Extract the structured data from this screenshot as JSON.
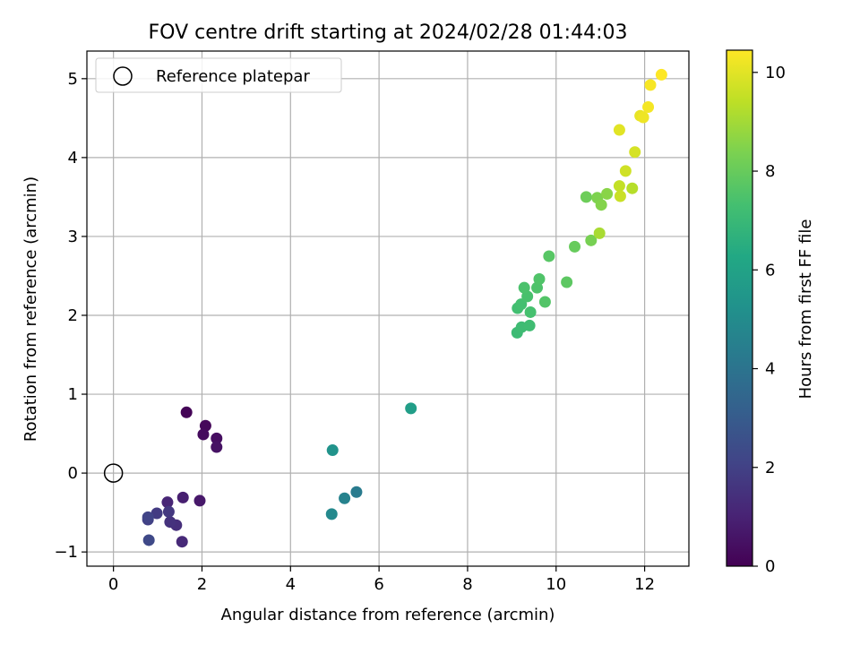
{
  "chart_data": {
    "type": "scatter",
    "title": "FOV centre drift starting at 2024/02/28 01:44:03",
    "xlabel": "Angular distance from reference (arcmin)",
    "ylabel": "Rotation from reference (arcmin)",
    "xlim": [
      -0.6,
      13.0
    ],
    "ylim": [
      -1.18,
      5.35
    ],
    "xticks": [
      0,
      2,
      4,
      6,
      8,
      10,
      12
    ],
    "yticks": [
      -1,
      0,
      1,
      2,
      3,
      4,
      5
    ],
    "grid": true,
    "legend": {
      "placement": "top-left",
      "entries": [
        "Reference platepar"
      ]
    },
    "reference_point": {
      "name": "Reference platepar",
      "x": 0,
      "y": 0,
      "marker": "open-circle"
    },
    "colorbar": {
      "label": "Hours from first FF file",
      "colormap": "viridis",
      "range": [
        0,
        10.45
      ],
      "ticks": [
        0,
        2,
        4,
        6,
        8,
        10
      ]
    },
    "points": [
      {
        "x": 1.65,
        "y": 0.77,
        "c": 0.1
      },
      {
        "x": 2.08,
        "y": 0.6,
        "c": 0.2
      },
      {
        "x": 2.03,
        "y": 0.49,
        "c": 0.3
      },
      {
        "x": 2.33,
        "y": 0.44,
        "c": 0.4
      },
      {
        "x": 2.33,
        "y": 0.33,
        "c": 0.5
      },
      {
        "x": 1.95,
        "y": -0.35,
        "c": 0.7
      },
      {
        "x": 1.57,
        "y": -0.31,
        "c": 0.9
      },
      {
        "x": 1.22,
        "y": -0.37,
        "c": 1.1
      },
      {
        "x": 1.55,
        "y": -0.87,
        "c": 1.2
      },
      {
        "x": 1.42,
        "y": -0.66,
        "c": 1.4
      },
      {
        "x": 1.28,
        "y": -0.62,
        "c": 1.5
      },
      {
        "x": 1.25,
        "y": -0.49,
        "c": 1.7
      },
      {
        "x": 0.98,
        "y": -0.51,
        "c": 1.8
      },
      {
        "x": 0.78,
        "y": -0.59,
        "c": 2.0
      },
      {
        "x": 0.78,
        "y": -0.56,
        "c": 2.1
      },
      {
        "x": 0.8,
        "y": -0.85,
        "c": 2.3
      },
      {
        "x": 5.49,
        "y": -0.24,
        "c": 4.3
      },
      {
        "x": 5.22,
        "y": -0.32,
        "c": 4.6
      },
      {
        "x": 4.93,
        "y": -0.52,
        "c": 4.9
      },
      {
        "x": 4.95,
        "y": 0.29,
        "c": 5.3
      },
      {
        "x": 6.72,
        "y": 0.82,
        "c": 5.8
      },
      {
        "x": 9.12,
        "y": 1.78,
        "c": 7.1
      },
      {
        "x": 9.22,
        "y": 1.85,
        "c": 7.15
      },
      {
        "x": 9.4,
        "y": 1.87,
        "c": 7.2
      },
      {
        "x": 9.13,
        "y": 2.09,
        "c": 7.25
      },
      {
        "x": 9.21,
        "y": 2.14,
        "c": 7.3
      },
      {
        "x": 9.42,
        "y": 2.04,
        "c": 7.35
      },
      {
        "x": 9.35,
        "y": 2.24,
        "c": 7.4
      },
      {
        "x": 9.28,
        "y": 2.35,
        "c": 7.45
      },
      {
        "x": 9.57,
        "y": 2.35,
        "c": 7.5
      },
      {
        "x": 9.62,
        "y": 2.46,
        "c": 7.55
      },
      {
        "x": 9.75,
        "y": 2.17,
        "c": 7.6
      },
      {
        "x": 9.84,
        "y": 2.75,
        "c": 7.7
      },
      {
        "x": 10.24,
        "y": 2.42,
        "c": 7.8
      },
      {
        "x": 10.42,
        "y": 2.87,
        "c": 8.0
      },
      {
        "x": 10.68,
        "y": 3.5,
        "c": 8.1
      },
      {
        "x": 10.79,
        "y": 2.95,
        "c": 8.3
      },
      {
        "x": 10.93,
        "y": 3.49,
        "c": 8.4
      },
      {
        "x": 11.02,
        "y": 3.4,
        "c": 8.5
      },
      {
        "x": 11.15,
        "y": 3.54,
        "c": 8.6
      },
      {
        "x": 10.98,
        "y": 3.04,
        "c": 9.1
      },
      {
        "x": 11.72,
        "y": 3.61,
        "c": 9.3
      },
      {
        "x": 11.43,
        "y": 3.64,
        "c": 9.5
      },
      {
        "x": 11.45,
        "y": 3.51,
        "c": 9.6
      },
      {
        "x": 11.57,
        "y": 3.83,
        "c": 9.7
      },
      {
        "x": 11.78,
        "y": 4.07,
        "c": 9.8
      },
      {
        "x": 11.43,
        "y": 4.35,
        "c": 10.0
      },
      {
        "x": 11.9,
        "y": 4.53,
        "c": 10.1
      },
      {
        "x": 11.97,
        "y": 4.51,
        "c": 10.2
      },
      {
        "x": 12.08,
        "y": 4.64,
        "c": 10.3
      },
      {
        "x": 12.13,
        "y": 4.92,
        "c": 10.35
      },
      {
        "x": 12.38,
        "y": 5.05,
        "c": 10.45
      }
    ]
  }
}
